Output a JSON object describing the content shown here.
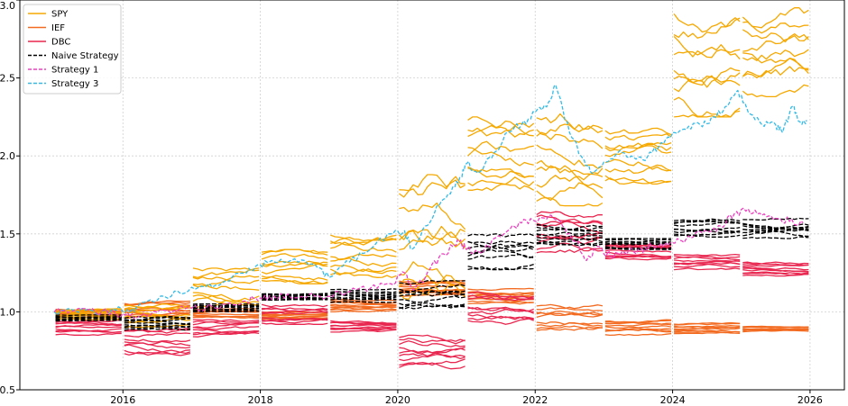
{
  "chart_data": {
    "type": "line",
    "title": "",
    "xlabel": "",
    "ylabel": "",
    "xlim": [
      2014.5,
      2026.5
    ],
    "ylim": [
      0.5,
      3.0
    ],
    "x_ticks": [
      2016,
      2018,
      2020,
      2022,
      2024,
      2026
    ],
    "x_tick_labels": [
      "2016",
      "2018",
      "2020",
      "2022",
      "2024",
      "2026"
    ],
    "y_ticks": [
      0.5,
      1.0,
      1.5,
      2.0,
      2.5,
      3.0
    ],
    "y_tick_labels": [
      "0.5",
      "1.0",
      "1.5",
      "2.0",
      "2.5",
      "3.0"
    ],
    "grid": true,
    "legend_position": "top-left",
    "series": [
      {
        "name": "SPY",
        "color": "#f5a800",
        "style": "solid",
        "bands": [
          {
            "x0": 2015.0,
            "x1": 2016.0,
            "lo": 0.95,
            "hi": 1.02
          },
          {
            "x0": 2016.0,
            "x1": 2017.0,
            "lo": 0.9,
            "hi": 1.05
          },
          {
            "x0": 2017.0,
            "x1": 2018.0,
            "lo": 1.03,
            "hi": 1.28
          },
          {
            "x0": 2018.0,
            "x1": 2019.0,
            "lo": 1.18,
            "hi": 1.4
          },
          {
            "x0": 2019.0,
            "x1": 2020.0,
            "lo": 1.22,
            "hi": 1.5
          },
          {
            "x0": 2020.0,
            "x1": 2021.0,
            "lo": 1.05,
            "hi": 1.88
          },
          {
            "x0": 2021.0,
            "x1": 2022.0,
            "lo": 1.78,
            "hi": 2.25
          },
          {
            "x0": 2022.0,
            "x1": 2023.0,
            "lo": 1.68,
            "hi": 2.28
          },
          {
            "x0": 2023.0,
            "x1": 2024.0,
            "lo": 1.82,
            "hi": 2.2
          },
          {
            "x0": 2024.0,
            "x1": 2025.0,
            "lo": 2.25,
            "hi": 2.92
          },
          {
            "x0": 2025.0,
            "x1": 2026.0,
            "lo": 2.38,
            "hi": 2.95
          }
        ]
      },
      {
        "name": "IEF",
        "color": "#f26b21",
        "style": "solid",
        "bands": [
          {
            "x0": 2015.0,
            "x1": 2016.0,
            "lo": 0.97,
            "hi": 1.02
          },
          {
            "x0": 2016.0,
            "x1": 2017.0,
            "lo": 0.96,
            "hi": 1.07
          },
          {
            "x0": 2017.0,
            "x1": 2018.0,
            "lo": 0.96,
            "hi": 1.02
          },
          {
            "x0": 2018.0,
            "x1": 2019.0,
            "lo": 0.95,
            "hi": 1.0
          },
          {
            "x0": 2019.0,
            "x1": 2020.0,
            "lo": 1.0,
            "hi": 1.08
          },
          {
            "x0": 2020.0,
            "x1": 2021.0,
            "lo": 1.1,
            "hi": 1.2
          },
          {
            "x0": 2021.0,
            "x1": 2022.0,
            "lo": 1.05,
            "hi": 1.15
          },
          {
            "x0": 2022.0,
            "x1": 2023.0,
            "lo": 0.88,
            "hi": 1.05
          },
          {
            "x0": 2023.0,
            "x1": 2024.0,
            "lo": 0.85,
            "hi": 0.95
          },
          {
            "x0": 2024.0,
            "x1": 2025.0,
            "lo": 0.86,
            "hi": 0.93
          },
          {
            "x0": 2025.0,
            "x1": 2026.0,
            "lo": 0.87,
            "hi": 0.91
          }
        ]
      },
      {
        "name": "DBC",
        "color": "#e8264f",
        "style": "solid",
        "bands": [
          {
            "x0": 2015.0,
            "x1": 2016.0,
            "lo": 0.85,
            "hi": 0.95
          },
          {
            "x0": 2016.0,
            "x1": 2017.0,
            "lo": 0.72,
            "hi": 0.9
          },
          {
            "x0": 2017.0,
            "x1": 2018.0,
            "lo": 0.83,
            "hi": 0.95
          },
          {
            "x0": 2018.0,
            "x1": 2019.0,
            "lo": 0.92,
            "hi": 1.05
          },
          {
            "x0": 2019.0,
            "x1": 2020.0,
            "lo": 0.87,
            "hi": 0.95
          },
          {
            "x0": 2020.0,
            "x1": 2021.0,
            "lo": 0.63,
            "hi": 0.85
          },
          {
            "x0": 2021.0,
            "x1": 2022.0,
            "lo": 0.92,
            "hi": 1.13
          },
          {
            "x0": 2022.0,
            "x1": 2023.0,
            "lo": 1.35,
            "hi": 1.65
          },
          {
            "x0": 2023.0,
            "x1": 2024.0,
            "lo": 1.33,
            "hi": 1.45
          },
          {
            "x0": 2024.0,
            "x1": 2025.0,
            "lo": 1.27,
            "hi": 1.37
          },
          {
            "x0": 2025.0,
            "x1": 2026.0,
            "lo": 1.23,
            "hi": 1.32
          }
        ]
      },
      {
        "name": "Naive Strategy",
        "color": "#000000",
        "style": "dashed",
        "bands": [
          {
            "x0": 2015.0,
            "x1": 2016.0,
            "lo": 0.94,
            "hi": 0.98
          },
          {
            "x0": 2016.0,
            "x1": 2017.0,
            "lo": 0.88,
            "hi": 0.97
          },
          {
            "x0": 2017.0,
            "x1": 2018.0,
            "lo": 1.0,
            "hi": 1.05
          },
          {
            "x0": 2018.0,
            "x1": 2019.0,
            "lo": 1.07,
            "hi": 1.12
          },
          {
            "x0": 2019.0,
            "x1": 2020.0,
            "lo": 1.06,
            "hi": 1.15
          },
          {
            "x0": 2020.0,
            "x1": 2021.0,
            "lo": 1.0,
            "hi": 1.2
          },
          {
            "x0": 2021.0,
            "x1": 2022.0,
            "lo": 1.27,
            "hi": 1.5
          },
          {
            "x0": 2022.0,
            "x1": 2023.0,
            "lo": 1.42,
            "hi": 1.57
          },
          {
            "x0": 2023.0,
            "x1": 2024.0,
            "lo": 1.4,
            "hi": 1.47
          },
          {
            "x0": 2024.0,
            "x1": 2025.0,
            "lo": 1.48,
            "hi": 1.6
          },
          {
            "x0": 2025.0,
            "x1": 2026.0,
            "lo": 1.47,
            "hi": 1.6
          }
        ]
      },
      {
        "name": "Strategy 1",
        "color": "#ee3fc0",
        "style": "dashed",
        "points": [
          [
            2015.0,
            1.0
          ],
          [
            2015.3,
            1.01
          ],
          [
            2015.6,
            1.0
          ],
          [
            2015.9,
            0.99
          ],
          [
            2016.1,
            0.97
          ],
          [
            2016.3,
            0.99
          ],
          [
            2016.6,
            1.01
          ],
          [
            2016.9,
            1.02
          ],
          [
            2017.2,
            1.02
          ],
          [
            2017.5,
            1.05
          ],
          [
            2017.8,
            1.07
          ],
          [
            2018.0,
            1.09
          ],
          [
            2018.2,
            1.1
          ],
          [
            2018.5,
            1.09
          ],
          [
            2018.8,
            1.1
          ],
          [
            2019.0,
            1.1
          ],
          [
            2019.3,
            1.13
          ],
          [
            2019.6,
            1.15
          ],
          [
            2019.9,
            1.18
          ],
          [
            2020.1,
            1.25
          ],
          [
            2020.2,
            1.15
          ],
          [
            2020.4,
            1.22
          ],
          [
            2020.6,
            1.35
          ],
          [
            2020.8,
            1.42
          ],
          [
            2020.9,
            1.45
          ],
          [
            2021.0,
            1.4
          ],
          [
            2021.2,
            1.38
          ],
          [
            2021.4,
            1.47
          ],
          [
            2021.6,
            1.52
          ],
          [
            2021.8,
            1.57
          ],
          [
            2022.0,
            1.58
          ],
          [
            2022.2,
            1.62
          ],
          [
            2022.4,
            1.55
          ],
          [
            2022.6,
            1.45
          ],
          [
            2022.75,
            1.33
          ],
          [
            2022.9,
            1.42
          ],
          [
            2023.1,
            1.36
          ],
          [
            2023.3,
            1.38
          ],
          [
            2023.5,
            1.4
          ],
          [
            2023.7,
            1.42
          ],
          [
            2023.9,
            1.44
          ],
          [
            2024.1,
            1.46
          ],
          [
            2024.3,
            1.48
          ],
          [
            2024.5,
            1.52
          ],
          [
            2024.7,
            1.55
          ],
          [
            2024.9,
            1.63
          ],
          [
            2025.1,
            1.66
          ],
          [
            2025.3,
            1.62
          ],
          [
            2025.5,
            1.6
          ],
          [
            2025.7,
            1.58
          ],
          [
            2025.9,
            1.57
          ]
        ]
      },
      {
        "name": "Strategy 3",
        "color": "#33bbe8",
        "style": "dashed",
        "points": [
          [
            2015.0,
            1.0
          ],
          [
            2015.3,
            1.01
          ],
          [
            2015.6,
            0.99
          ],
          [
            2015.9,
            1.01
          ],
          [
            2016.1,
            1.0
          ],
          [
            2016.3,
            1.06
          ],
          [
            2016.6,
            1.1
          ],
          [
            2016.9,
            1.12
          ],
          [
            2017.2,
            1.16
          ],
          [
            2017.5,
            1.2
          ],
          [
            2017.8,
            1.25
          ],
          [
            2018.0,
            1.3
          ],
          [
            2018.2,
            1.32
          ],
          [
            2018.5,
            1.34
          ],
          [
            2018.8,
            1.3
          ],
          [
            2019.0,
            1.22
          ],
          [
            2019.3,
            1.32
          ],
          [
            2019.6,
            1.4
          ],
          [
            2019.9,
            1.5
          ],
          [
            2020.1,
            1.52
          ],
          [
            2020.2,
            1.4
          ],
          [
            2020.4,
            1.55
          ],
          [
            2020.6,
            1.68
          ],
          [
            2020.8,
            1.8
          ],
          [
            2020.9,
            1.86
          ],
          [
            2021.0,
            1.95
          ],
          [
            2021.2,
            1.9
          ],
          [
            2021.4,
            2.02
          ],
          [
            2021.6,
            2.15
          ],
          [
            2021.8,
            2.2
          ],
          [
            2022.0,
            2.28
          ],
          [
            2022.2,
            2.35
          ],
          [
            2022.3,
            2.45
          ],
          [
            2022.5,
            2.15
          ],
          [
            2022.7,
            1.98
          ],
          [
            2022.8,
            1.9
          ],
          [
            2023.0,
            1.96
          ],
          [
            2023.2,
            2.02
          ],
          [
            2023.4,
            2.0
          ],
          [
            2023.6,
            1.97
          ],
          [
            2023.8,
            2.06
          ],
          [
            2024.0,
            2.15
          ],
          [
            2024.2,
            2.17
          ],
          [
            2024.4,
            2.2
          ],
          [
            2024.6,
            2.25
          ],
          [
            2024.8,
            2.32
          ],
          [
            2024.95,
            2.42
          ],
          [
            2025.1,
            2.28
          ],
          [
            2025.3,
            2.2
          ],
          [
            2025.5,
            2.2
          ],
          [
            2025.6,
            2.15
          ],
          [
            2025.75,
            2.32
          ],
          [
            2025.85,
            2.22
          ],
          [
            2025.95,
            2.23
          ]
        ]
      }
    ]
  }
}
